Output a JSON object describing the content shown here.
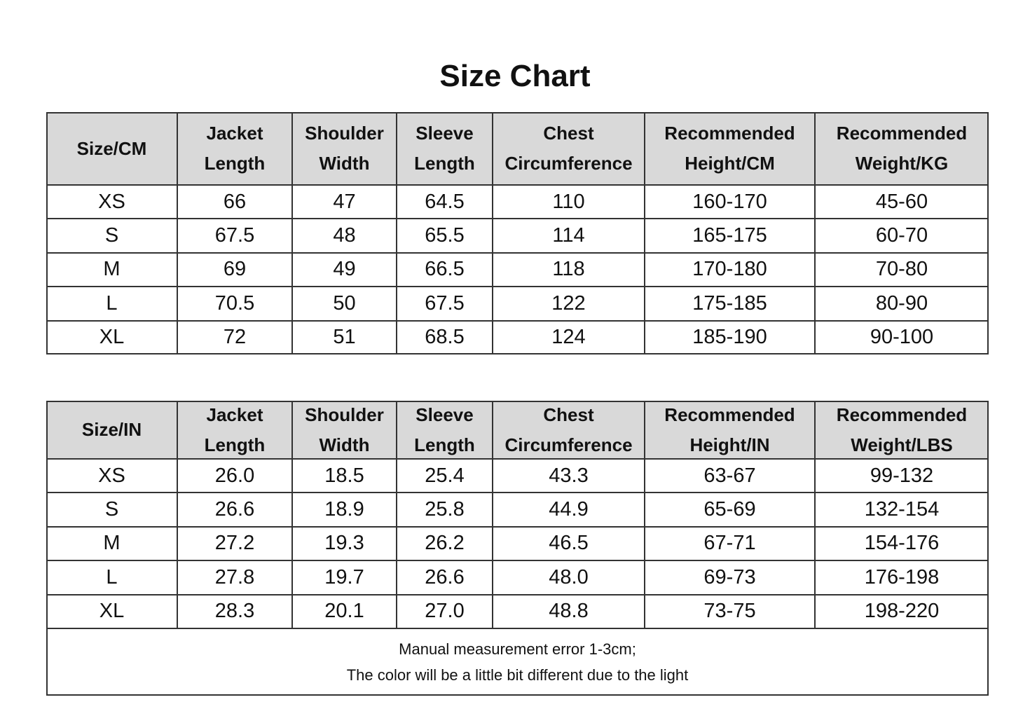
{
  "header": {
    "title": "Size Chart"
  },
  "tables": [
    {
      "headers": [
        "Size/CM",
        "Jacket\nLength",
        "Shoulder\nWidth",
        "Sleeve\nLength",
        "Chest\nCircumference",
        "Recommended\nHeight/CM",
        "Recommended\nWeight/KG"
      ],
      "rows": [
        [
          "XS",
          "66",
          "47",
          "64.5",
          "110",
          "160-170",
          "45-60"
        ],
        [
          "S",
          "67.5",
          "48",
          "65.5",
          "114",
          "165-175",
          "60-70"
        ],
        [
          "M",
          "69",
          "49",
          "66.5",
          "118",
          "170-180",
          "70-80"
        ],
        [
          "L",
          "70.5",
          "50",
          "67.5",
          "122",
          "175-185",
          "80-90"
        ],
        [
          "XL",
          "72",
          "51",
          "68.5",
          "124",
          "185-190",
          "90-100"
        ]
      ]
    },
    {
      "headers": [
        "Size/IN",
        "Jacket\nLength",
        "Shoulder\nWidth",
        "Sleeve\nLength",
        "Chest\nCircumference",
        "Recommended\nHeight/IN",
        "Recommended\nWeight/LBS"
      ],
      "rows": [
        [
          "XS",
          "26.0",
          "18.5",
          "25.4",
          "43.3",
          "63-67",
          "99-132"
        ],
        [
          "S",
          "26.6",
          "18.9",
          "25.8",
          "44.9",
          "65-69",
          "132-154"
        ],
        [
          "M",
          "27.2",
          "19.3",
          "26.2",
          "46.5",
          "67-71",
          "154-176"
        ],
        [
          "L",
          "27.8",
          "19.7",
          "26.6",
          "48.0",
          "69-73",
          "176-198"
        ],
        [
          "XL",
          "28.3",
          "20.1",
          "27.0",
          "48.8",
          "73-75",
          "198-220"
        ]
      ],
      "note": [
        "Manual measurement error 1-3cm;",
        "The color will be a little bit different due to the light"
      ]
    }
  ]
}
